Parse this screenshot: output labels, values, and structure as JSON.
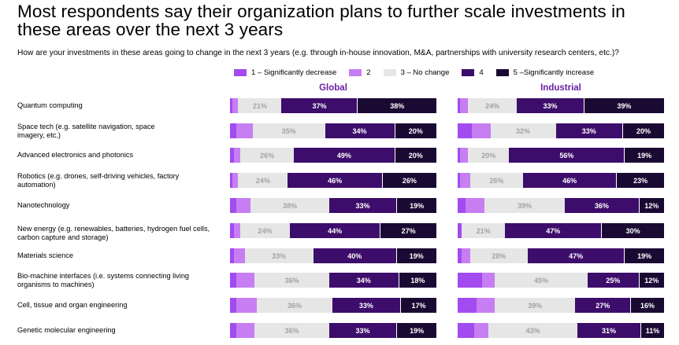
{
  "title": "Most respondents say their organization plans to further scale investments in these areas over the next 3 years",
  "subtitle": "How are your investments in these areas going to change in the next 3 years (e.g. through in-house innovation, M&A, partnerships with university research centers, etc.)?",
  "legend": [
    {
      "label": "1 –  Significantly decrease",
      "color": "#a24bf0"
    },
    {
      "label": "2",
      "color": "#c77ef2"
    },
    {
      "label": "3 – No change",
      "color": "#e6e6e6"
    },
    {
      "label": "4",
      "color": "#3d0d6b"
    },
    {
      "label": "5 –Significantly increase",
      "color": "#1a0a33"
    }
  ],
  "chart_data": {
    "type": "bar",
    "stacked": true,
    "orientation": "horizontal",
    "title": "Most respondents say their organization plans to further scale investments in these areas over the next 3 years",
    "panels": [
      "Global",
      "Industrial"
    ],
    "categories": [
      "Quantum computing",
      "Space tech (e.g. satellite navigation, space imagery, etc.)",
      "Advanced electronics and photonics",
      "Robotics (e.g. drones, self-driving vehicles, factory automation)",
      "Nanotechnology",
      "New energy (e.g. renewables, batteries, hydrogen fuel cells, carbon capture and storage)",
      "Materials science",
      "Bio-machine interfaces (i.e. systems connecting living organisms to machines)",
      "Cell, tissue and organ engineering",
      "Genetic molecular engineering"
    ],
    "series_names": [
      "1 – Significantly decrease",
      "2",
      "3 – No change",
      "4",
      "5 – Significantly increase"
    ],
    "global": [
      [
        1,
        3,
        21,
        37,
        38
      ],
      [
        3,
        8,
        35,
        34,
        20
      ],
      [
        2,
        3,
        26,
        49,
        20
      ],
      [
        1,
        3,
        24,
        46,
        26
      ],
      [
        3,
        7,
        38,
        33,
        19
      ],
      [
        2,
        3,
        24,
        44,
        27
      ],
      [
        2,
        5,
        33,
        40,
        19
      ],
      [
        3,
        9,
        36,
        34,
        18
      ],
      [
        3,
        10,
        36,
        33,
        17
      ],
      [
        3,
        9,
        36,
        33,
        19
      ]
    ],
    "industrial": [
      [
        1,
        4,
        24,
        33,
        39
      ],
      [
        7,
        9,
        32,
        33,
        20
      ],
      [
        1,
        4,
        20,
        56,
        19
      ],
      [
        1,
        5,
        26,
        46,
        23
      ],
      [
        4,
        9,
        39,
        36,
        12
      ],
      [
        2,
        0,
        21,
        47,
        30
      ],
      [
        2,
        4,
        28,
        47,
        19
      ],
      [
        12,
        6,
        45,
        25,
        12
      ],
      [
        9,
        9,
        39,
        27,
        16
      ],
      [
        8,
        7,
        43,
        31,
        11
      ]
    ]
  }
}
